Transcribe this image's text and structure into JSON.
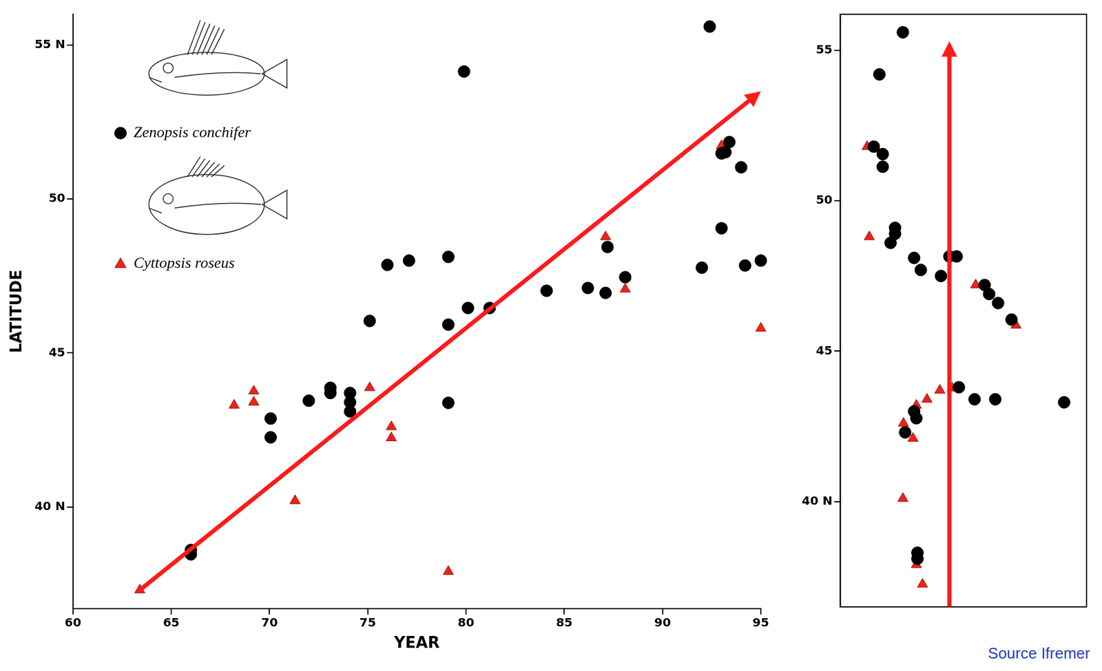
{
  "chart_data": [
    {
      "type": "scatter",
      "x_label": "YEAR",
      "y_label": "LATITUDE",
      "xlim": [
        60,
        95
      ],
      "xticks": [
        60,
        65,
        70,
        75,
        80,
        85,
        90,
        95
      ],
      "ylim": [
        36.7,
        56
      ],
      "yticks": [
        {
          "value": 40,
          "label": "40 N"
        },
        45,
        50,
        {
          "value": 55,
          "label": "55 N"
        }
      ],
      "grid": false,
      "legend": "upper left",
      "series": [
        {
          "name": "Zenopsis conchifer",
          "color": "#000000",
          "marker": "circle",
          "x": [
            66.0,
            66.0,
            70.06,
            70.06,
            72.0,
            73.1,
            73.1,
            74.1,
            74.1,
            74.1,
            75.1,
            76.0,
            77.1,
            79.1,
            79.1,
            79.1,
            79.9,
            80.1,
            81.2,
            84.1,
            86.2,
            87.1,
            87.2,
            88.1,
            92.0,
            92.4,
            93.0,
            93.0,
            93.4,
            93.2,
            94.0,
            94.2,
            95.0
          ],
          "values": [
            38.46,
            38.6,
            42.87,
            42.26,
            43.45,
            43.87,
            43.7,
            43.7,
            43.4,
            43.1,
            46.04,
            47.86,
            48.0,
            48.12,
            45.92,
            43.38,
            54.14,
            46.46,
            46.46,
            47.02,
            47.11,
            46.95,
            48.44,
            47.46,
            47.77,
            55.6,
            49.05,
            51.48,
            51.85,
            51.52,
            51.03,
            47.84,
            48.0
          ]
        },
        {
          "name": "Cyttopsis roseus",
          "color": "#e8241c",
          "marker": "triangle",
          "x": [
            63.4,
            68.2,
            69.2,
            69.2,
            71.3,
            75.1,
            76.2,
            76.2,
            79.1,
            87.1,
            88.1,
            93.0,
            95.0
          ],
          "values": [
            37.3,
            43.3,
            43.76,
            43.4,
            40.2,
            43.87,
            42.6,
            42.24,
            37.9,
            48.77,
            47.07,
            51.73,
            45.8
          ]
        }
      ],
      "arrow": {
        "from": [
          63.4,
          37.3
        ],
        "to": [
          95.0,
          53.5
        ],
        "color": "#ff1a1a"
      }
    },
    {
      "type": "scatter",
      "xlim": [
        -16,
        6
      ],
      "ylim": [
        36.5,
        56.2
      ],
      "yticks": [
        {
          "value": 40,
          "label": "40 N"
        },
        45,
        50,
        55
      ],
      "grid": false,
      "tick_labels": "y",
      "series": [
        {
          "color": "#000000",
          "marker": "circle",
          "x": [
            -10.4,
            -12.5,
            -13.0,
            -12.2,
            -12.2,
            -11.1,
            -11.5,
            -11.1,
            -9.4,
            -8.8,
            -7.0,
            -6.25,
            -5.6,
            -3.1,
            -2.7,
            -1.9,
            -0.7,
            -5.4,
            -4.0,
            -2.15,
            4.0,
            -9.4,
            -10.2,
            -9.2,
            -9.1,
            -9.1
          ],
          "values": [
            55.6,
            54.2,
            51.8,
            51.55,
            51.13,
            49.1,
            48.6,
            48.9,
            48.1,
            47.7,
            47.5,
            48.15,
            48.15,
            47.2,
            46.9,
            46.6,
            46.05,
            43.8,
            43.4,
            43.4,
            43.3,
            43.0,
            42.3,
            42.77,
            38.3,
            38.1
          ]
        },
        {
          "color": "#e8241c",
          "marker": "triangle",
          "x": [
            -13.6,
            -13.4,
            -3.9,
            -0.3,
            -7.1,
            -6.0,
            -9.2,
            -8.25,
            -10.35,
            -9.5,
            -10.4,
            -9.2,
            -8.65
          ],
          "values": [
            51.8,
            48.8,
            47.2,
            45.86,
            43.7,
            43.77,
            43.2,
            43.4,
            42.6,
            42.1,
            40.1,
            37.9,
            37.25
          ]
        }
      ],
      "arrow": {
        "from": [
          -6.25,
          36.5
        ],
        "to": [
          -6.25,
          55.3
        ],
        "color": "#ff1a1a"
      },
      "source": "Source Ifremer"
    }
  ]
}
